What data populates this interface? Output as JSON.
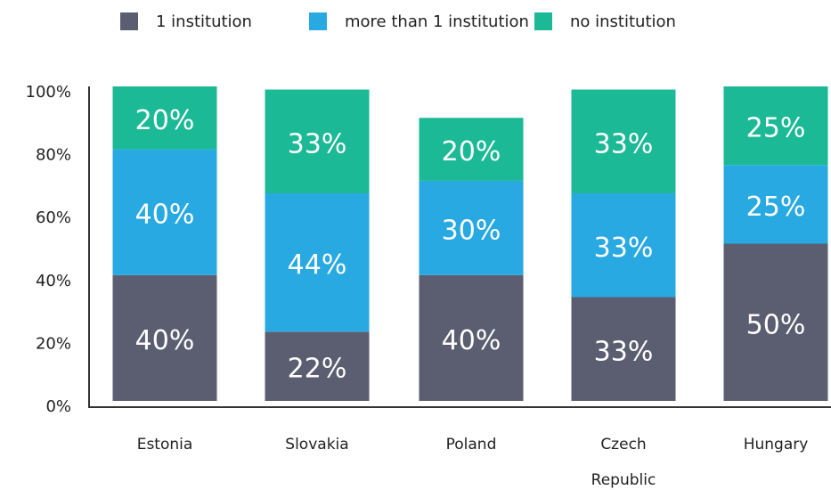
{
  "chart_data": {
    "type": "stacked_bar",
    "categories": [
      "Estonia",
      "Slovakia",
      "Poland",
      "Czech Republic",
      "Hungary"
    ],
    "series": [
      {
        "name": "1 institution",
        "color": "#5b5e71",
        "values": [
          40,
          22,
          40,
          33,
          50
        ],
        "value_labels": [
          "40%",
          "22%",
          "40%",
          "33%",
          "50%"
        ]
      },
      {
        "name": "more than 1 institution",
        "color": "#29a9e1",
        "values": [
          40,
          44,
          30,
          33,
          25
        ],
        "value_labels": [
          "40%",
          "44%",
          "30%",
          "33%",
          "25%"
        ]
      },
      {
        "name": "no institution",
        "color": "#1bb995",
        "values": [
          20,
          33,
          20,
          33,
          25
        ],
        "value_labels": [
          "20%",
          "33%",
          "20%",
          "33%",
          "25%"
        ]
      }
    ],
    "ylim": [
      0,
      100
    ],
    "yticks": [
      {
        "value": 0,
        "label": "0%"
      },
      {
        "value": 20,
        "label": "20%"
      },
      {
        "value": 40,
        "label": "40%"
      },
      {
        "value": 60,
        "label": "60%"
      },
      {
        "value": 80,
        "label": "80%"
      },
      {
        "value": 100,
        "label": "100%"
      }
    ],
    "legend": "top"
  }
}
